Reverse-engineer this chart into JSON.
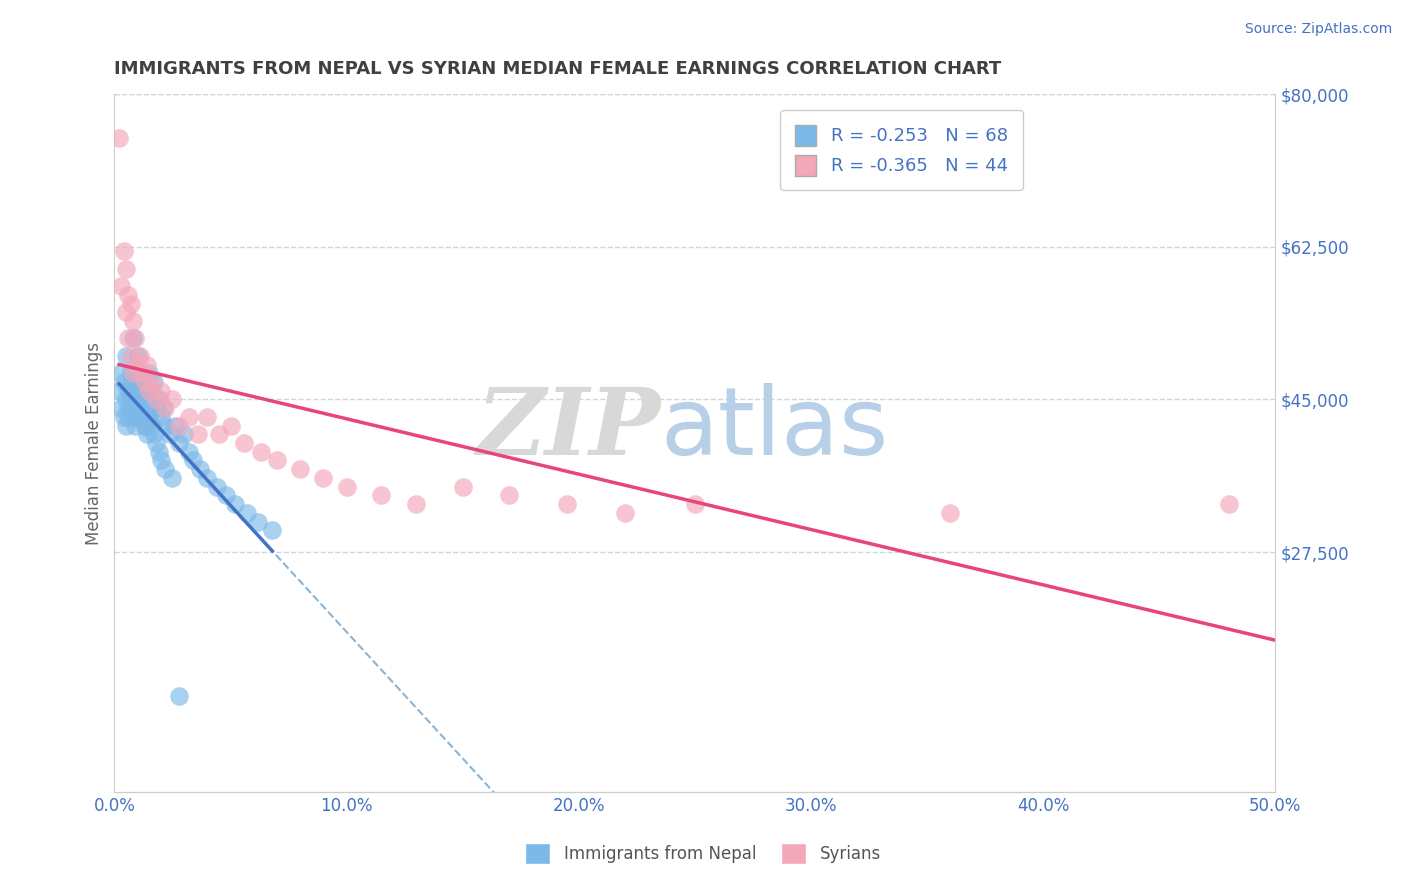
{
  "title": "IMMIGRANTS FROM NEPAL VS SYRIAN MEDIAN FEMALE EARNINGS CORRELATION CHART",
  "source": "Source: ZipAtlas.com",
  "ylabel": "Median Female Earnings",
  "xlim": [
    0.0,
    0.5
  ],
  "ylim": [
    0,
    80000
  ],
  "xticks": [
    0.0,
    0.1,
    0.2,
    0.3,
    0.4,
    0.5
  ],
  "xticklabels": [
    "0.0%",
    "10.0%",
    "20.0%",
    "30.0%",
    "40.0%",
    "50.0%"
  ],
  "yticklabels_right": [
    "$27,500",
    "$45,000",
    "$62,500",
    "$80,000"
  ],
  "yticks_right": [
    27500,
    45000,
    62500,
    80000
  ],
  "legend_nepal_r": "R = -0.253",
  "legend_nepal_n": "N = 68",
  "legend_syria_r": "R = -0.365",
  "legend_syria_n": "N = 44",
  "nepal_color": "#7cb9e8",
  "syria_color": "#f4a7b9",
  "nepal_line_color": "#4472c4",
  "syria_line_color": "#e8457a",
  "dashed_line_color": "#8ab4d4",
  "grid_color": "#c8d8e8",
  "title_color": "#404040",
  "axis_color": "#4472c4",
  "watermark_zip_color": "#d0d0d0",
  "watermark_atlas_color": "#b0cce8",
  "nepal_x": [
    0.002,
    0.003,
    0.003,
    0.004,
    0.004,
    0.005,
    0.005,
    0.005,
    0.006,
    0.006,
    0.006,
    0.007,
    0.007,
    0.007,
    0.008,
    0.008,
    0.008,
    0.009,
    0.009,
    0.009,
    0.01,
    0.01,
    0.01,
    0.011,
    0.011,
    0.012,
    0.012,
    0.013,
    0.013,
    0.014,
    0.014,
    0.015,
    0.015,
    0.016,
    0.017,
    0.018,
    0.019,
    0.02,
    0.021,
    0.022,
    0.024,
    0.026,
    0.028,
    0.03,
    0.032,
    0.034,
    0.037,
    0.04,
    0.044,
    0.048,
    0.052,
    0.057,
    0.062,
    0.068,
    0.01,
    0.011,
    0.012,
    0.013,
    0.014,
    0.015,
    0.016,
    0.017,
    0.018,
    0.019,
    0.02,
    0.022,
    0.025,
    0.028
  ],
  "nepal_y": [
    46000,
    44000,
    48000,
    47000,
    43000,
    45000,
    50000,
    42000,
    46000,
    44000,
    43000,
    48000,
    47000,
    45000,
    52000,
    44000,
    43000,
    47000,
    45000,
    42000,
    50000,
    46000,
    43000,
    48000,
    44000,
    47000,
    43000,
    46000,
    42000,
    45000,
    44000,
    48000,
    43000,
    46000,
    47000,
    44000,
    45000,
    43000,
    44000,
    42000,
    41000,
    42000,
    40000,
    41000,
    39000,
    38000,
    37000,
    36000,
    35000,
    34000,
    33000,
    32000,
    31000,
    30000,
    44000,
    43000,
    45000,
    42000,
    41000,
    43000,
    42000,
    41000,
    40000,
    39000,
    38000,
    37000,
    36000,
    11000
  ],
  "syria_x": [
    0.002,
    0.003,
    0.004,
    0.005,
    0.005,
    0.006,
    0.006,
    0.007,
    0.007,
    0.008,
    0.008,
    0.009,
    0.01,
    0.011,
    0.012,
    0.013,
    0.014,
    0.015,
    0.016,
    0.018,
    0.02,
    0.022,
    0.025,
    0.028,
    0.032,
    0.036,
    0.04,
    0.045,
    0.05,
    0.056,
    0.063,
    0.07,
    0.08,
    0.09,
    0.1,
    0.115,
    0.13,
    0.15,
    0.17,
    0.195,
    0.22,
    0.25,
    0.36,
    0.48
  ],
  "syria_y": [
    75000,
    58000,
    62000,
    55000,
    60000,
    57000,
    52000,
    56000,
    50000,
    54000,
    48000,
    52000,
    49000,
    50000,
    48000,
    47000,
    49000,
    46000,
    47000,
    45000,
    46000,
    44000,
    45000,
    42000,
    43000,
    41000,
    43000,
    41000,
    42000,
    40000,
    39000,
    38000,
    37000,
    36000,
    35000,
    34000,
    33000,
    35000,
    34000,
    33000,
    32000,
    33000,
    32000,
    33000
  ]
}
